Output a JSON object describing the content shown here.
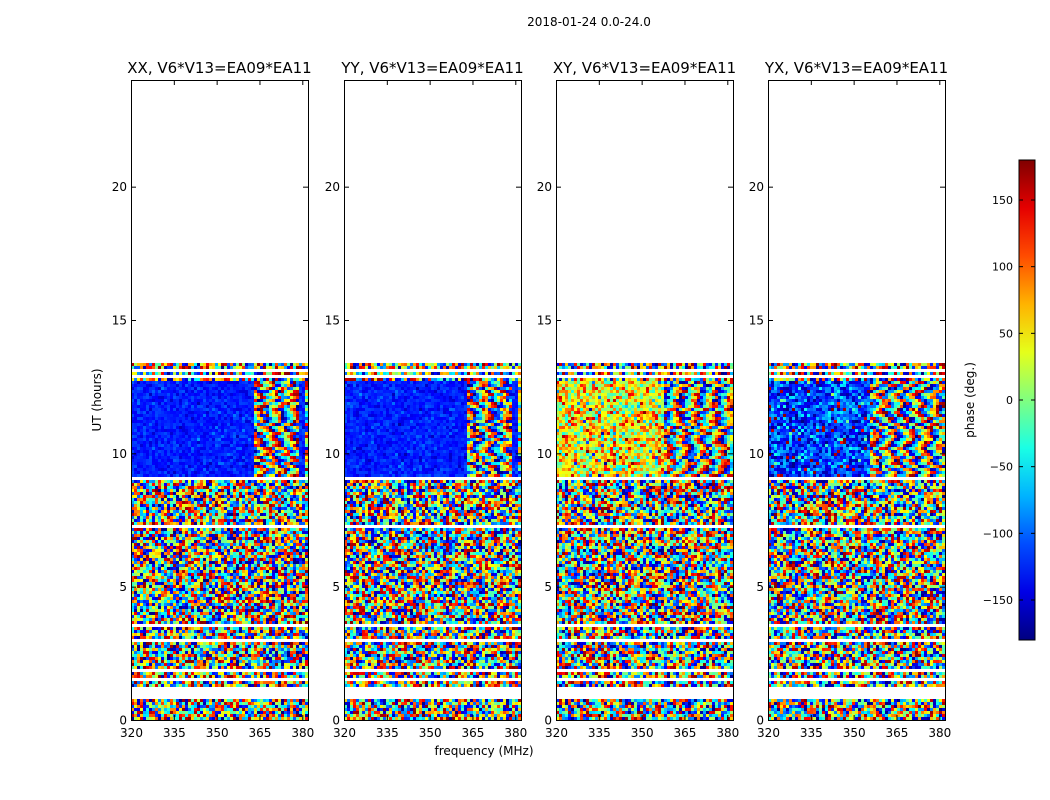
{
  "figure": {
    "suptitle": "2018-01-24 0.0-24.0",
    "xlabel": "frequency (MHz)",
    "ylabel": "UT (hours)"
  },
  "chart_data": {
    "type": "heatmap",
    "title": "2018-01-24 0.0-24.0",
    "xlabel": "frequency (MHz)",
    "ylabel": "UT (hours)",
    "xlim": [
      320,
      382
    ],
    "ylim": [
      0,
      24
    ],
    "xticks": [
      320,
      335,
      350,
      365,
      380
    ],
    "yticks": [
      0,
      5,
      10,
      15,
      20
    ],
    "colormap": "jet",
    "colorbar": {
      "label": "phase (deg.)",
      "range": [
        -180,
        180
      ],
      "ticks": [
        -150,
        -100,
        -50,
        0,
        50,
        100,
        150
      ],
      "tick_labels": [
        "−150",
        "−100",
        "−50",
        "0",
        "50",
        "100",
        "150"
      ]
    },
    "data_extent_hours": [
      0.0,
      13.4
    ],
    "blank_rows_hours": [
      [
        0.75,
        1.2
      ],
      [
        1.45,
        1.6
      ],
      [
        1.75,
        1.9
      ],
      [
        2.95,
        3.05
      ],
      [
        3.5,
        3.6
      ],
      [
        7.25,
        7.35
      ],
      [
        8.95,
        9.15
      ],
      [
        10.2,
        10.27
      ],
      [
        12.85,
        12.9
      ],
      [
        13.05,
        13.15
      ]
    ],
    "panels": [
      {
        "title": "XX, V6*V13=EA09*EA11",
        "coherent_hours": [
          9.15,
          12.7
        ],
        "coherent_freq_mhz": [
          320,
          363.5
        ],
        "coherent_phase_deg": -125,
        "phase_spread_deg": 12,
        "stripe_region_mhz": [
          363.5,
          382
        ],
        "stripe_gap_mhz": [
          379,
          380.5
        ]
      },
      {
        "title": "YY, V6*V13=EA09*EA11",
        "coherent_hours": [
          9.15,
          12.7
        ],
        "coherent_freq_mhz": [
          320,
          363.5
        ],
        "coherent_phase_deg": -125,
        "phase_spread_deg": 12,
        "stripe_region_mhz": [
          363.5,
          382
        ],
        "stripe_gap_mhz": [
          379,
          380.5
        ]
      },
      {
        "title": "XY, V6*V13=EA09*EA11",
        "coherent_hours": [
          9.15,
          12.7
        ],
        "coherent_freq_mhz": [
          320,
          358
        ],
        "coherent_phase_deg": 45,
        "phase_spread_deg": 55,
        "stripe_region_mhz": [
          358,
          382
        ],
        "stripe_gap_mhz": []
      },
      {
        "title": "YX, V6*V13=EA09*EA11",
        "coherent_hours": [
          9.15,
          12.7
        ],
        "coherent_freq_mhz": [
          320,
          356
        ],
        "coherent_phase_deg": -115,
        "phase_spread_deg": 40,
        "stripe_region_mhz": [
          356,
          382
        ],
        "stripe_gap_mhz": []
      }
    ]
  }
}
